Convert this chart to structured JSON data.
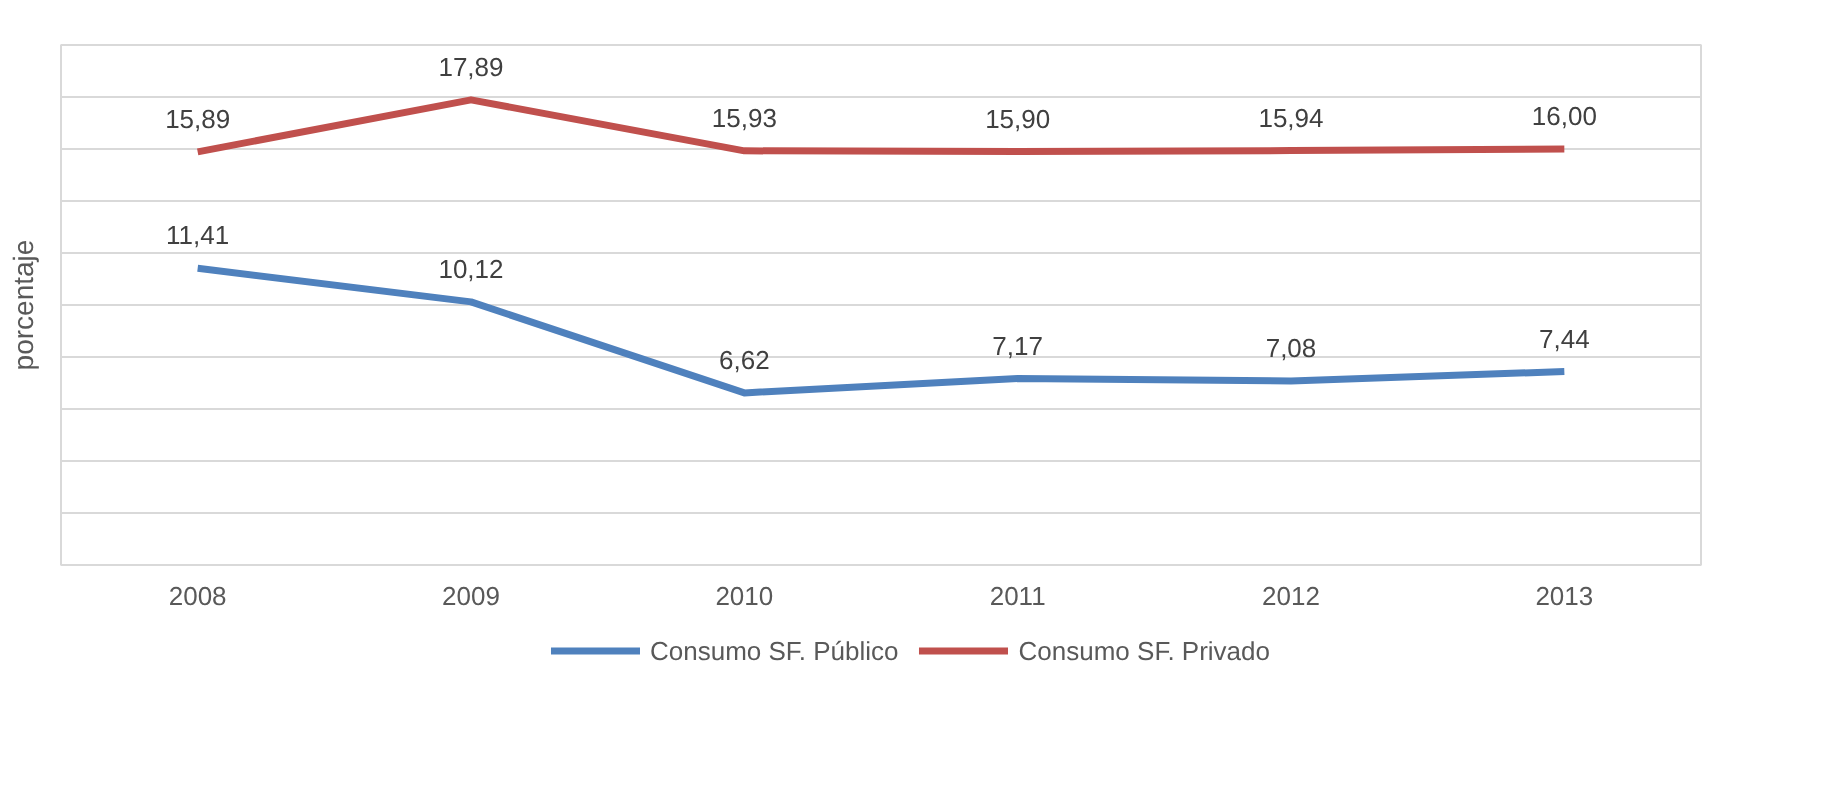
{
  "chart_data": {
    "type": "line",
    "ylabel": "porcentaje",
    "categories": [
      "2008",
      "2009",
      "2010",
      "2011",
      "2012",
      "2013"
    ],
    "series": [
      {
        "name": "Consumo SF. Público",
        "color": "#4f81bd",
        "values": [
          11.41,
          10.12,
          6.62,
          7.17,
          7.08,
          7.44
        ],
        "value_labels": [
          "11,41",
          "10,12",
          "6,62",
          "7,17",
          "7,08",
          "7,44"
        ]
      },
      {
        "name": "Consumo SF. Privado",
        "color": "#c0504d",
        "values": [
          15.89,
          17.89,
          15.93,
          15.9,
          15.94,
          16.0
        ],
        "value_labels": [
          "15,89",
          "17,89",
          "15,93",
          "15,90",
          "15,94",
          "16,00"
        ]
      }
    ],
    "ylim": [
      0,
      20
    ],
    "yticks": [
      {
        "value": 0,
        "label": null
      },
      {
        "value": 2,
        "label": null
      },
      {
        "value": 4,
        "label": null
      },
      {
        "value": 6,
        "label": null
      },
      {
        "value": 8,
        "label": null
      },
      {
        "value": 10,
        "label": null
      },
      {
        "value": 12,
        "label": null
      },
      {
        "value": 14,
        "label": null
      },
      {
        "value": 16,
        "label": null
      },
      {
        "value": 18,
        "label": null
      },
      {
        "value": 20,
        "label": null
      }
    ],
    "grid": "y",
    "legend": "bottom",
    "tick_labels": "x",
    "marker": "none",
    "line_style": "solid"
  }
}
